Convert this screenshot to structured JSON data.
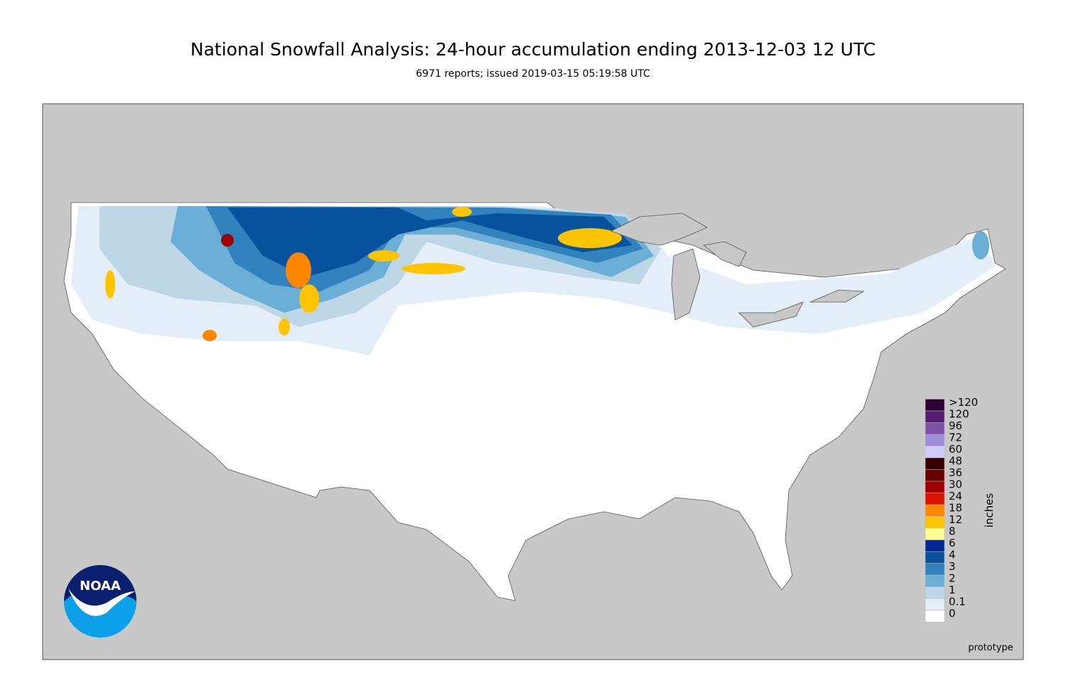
{
  "header": {
    "title": "National Snowfall Analysis: 24-hour accumulation ending 2013-12-03 12 UTC",
    "subtitle": "6971 reports; issued 2019-03-15 05:19:58 UTC"
  },
  "legend": {
    "unit": "inches",
    "items": [
      {
        "label": "0",
        "color": "#ffffff"
      },
      {
        "label": "0.1",
        "color": "#e4eef9"
      },
      {
        "label": "1",
        "color": "#bdd7e7"
      },
      {
        "label": "2",
        "color": "#6baed6"
      },
      {
        "label": "3",
        "color": "#3182bd"
      },
      {
        "label": "4",
        "color": "#08519c"
      },
      {
        "label": "6",
        "color": "#082694"
      },
      {
        "label": "8",
        "color": "#ffff96"
      },
      {
        "label": "12",
        "color": "#ffc400"
      },
      {
        "label": "18",
        "color": "#ff8700"
      },
      {
        "label": "24",
        "color": "#db1400"
      },
      {
        "label": "30",
        "color": "#9e0000"
      },
      {
        "label": "36",
        "color": "#690000"
      },
      {
        "label": "48",
        "color": "#360000"
      },
      {
        "label": "60",
        "color": "#ccccff"
      },
      {
        "label": "72",
        "color": "#9f8cd8"
      },
      {
        "label": "96",
        "color": "#7c52a5"
      },
      {
        "label": "120",
        "color": "#561c72"
      },
      {
        "label": ">120",
        "color": "#2e0033"
      }
    ]
  },
  "footer": {
    "note": "prototype"
  },
  "logo": {
    "text": "NOAA"
  }
}
